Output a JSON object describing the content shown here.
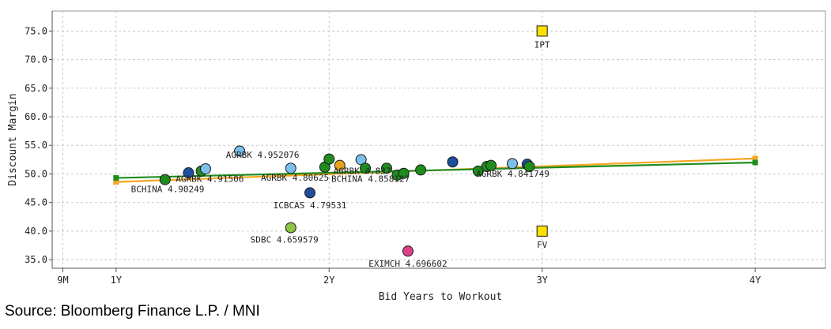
{
  "chart_data": {
    "type": "scatter",
    "xlabel": "Bid Years to Workout",
    "ylabel": "Discount Margin",
    "x_ticks": [
      {
        "label": "9M",
        "value": 0.75
      },
      {
        "label": "1Y",
        "value": 1.0
      },
      {
        "label": "2Y",
        "value": 2.0
      },
      {
        "label": "3Y",
        "value": 3.0
      },
      {
        "label": "4Y",
        "value": 4.0
      }
    ],
    "y_ticks": [
      "35.0",
      "40.0",
      "45.0",
      "50.0",
      "55.0",
      "60.0",
      "65.0",
      "70.0",
      "75.0"
    ],
    "xlim": [
      0.7,
      4.33
    ],
    "ylim": [
      33.5,
      78.5
    ],
    "grid": true,
    "trend_lines": [
      {
        "name": "orange-trend",
        "color": "#F5A623",
        "x": [
          1.0,
          4.0
        ],
        "y": [
          48.6,
          52.7
        ]
      },
      {
        "name": "green-trend",
        "color": "#1E8C1E",
        "x": [
          1.0,
          4.0
        ],
        "y": [
          49.3,
          52.0
        ]
      }
    ],
    "points": [
      {
        "x": 1.23,
        "y": 49.0,
        "color": "#1E8C1E"
      },
      {
        "x": 1.34,
        "y": 50.2,
        "color": "#1F4E9C"
      },
      {
        "x": 1.4,
        "y": 50.5,
        "color": "#1E8C1E"
      },
      {
        "x": 1.42,
        "y": 50.9,
        "color": "#7BC0EB"
      },
      {
        "x": 1.58,
        "y": 54.0,
        "color": "#7BC0EB"
      },
      {
        "x": 1.82,
        "y": 51.0,
        "color": "#7BC0EB"
      },
      {
        "x": 1.98,
        "y": 51.2,
        "color": "#1E8C1E"
      },
      {
        "x": 2.0,
        "y": 52.6,
        "color": "#1E8C1E"
      },
      {
        "x": 2.05,
        "y": 51.5,
        "color": "#E8A317"
      },
      {
        "x": 2.15,
        "y": 52.5,
        "color": "#7BC0EB"
      },
      {
        "x": 2.17,
        "y": 51.0,
        "color": "#1E8C1E"
      },
      {
        "x": 2.27,
        "y": 51.0,
        "color": "#1E8C1E"
      },
      {
        "x": 2.32,
        "y": 49.8,
        "color": "#1E8C1E"
      },
      {
        "x": 2.35,
        "y": 50.1,
        "color": "#1E8C1E"
      },
      {
        "x": 2.43,
        "y": 50.7,
        "color": "#1E8C1E"
      },
      {
        "x": 2.58,
        "y": 52.1,
        "color": "#1F4E9C"
      },
      {
        "x": 2.7,
        "y": 50.5,
        "color": "#1E8C1E"
      },
      {
        "x": 2.74,
        "y": 51.3,
        "color": "#1E8C1E"
      },
      {
        "x": 2.76,
        "y": 51.5,
        "color": "#1E8C1E"
      },
      {
        "x": 2.86,
        "y": 51.8,
        "color": "#7BC0EB"
      },
      {
        "x": 2.93,
        "y": 51.7,
        "color": "#1F4E9C"
      },
      {
        "x": 2.94,
        "y": 51.3,
        "color": "#1E8C1E"
      },
      {
        "x": 1.91,
        "y": 46.7,
        "color": "#1F4E9C"
      },
      {
        "x": 1.82,
        "y": 40.6,
        "color": "#8DC63F"
      },
      {
        "x": 2.37,
        "y": 36.5,
        "color": "#E0408A"
      }
    ],
    "square_points": [
      {
        "x": 3.0,
        "y": 75.0,
        "color": "#FFE000",
        "label": "IPT"
      },
      {
        "x": 3.0,
        "y": 40.0,
        "color": "#FFE000",
        "label": "FV"
      }
    ],
    "annotations": [
      {
        "text": "AGRBK 4.952076",
        "x": 1.86,
        "y": 52.8,
        "anchor": "end"
      },
      {
        "text": "AGRBK 4.91506",
        "x": 1.28,
        "y": 48.6,
        "anchor": "start"
      },
      {
        "text": "BCHINA 4.90249",
        "x": 1.07,
        "y": 46.8,
        "anchor": "start"
      },
      {
        "text": "AGRBK 4.80625",
        "x": 1.68,
        "y": 48.8,
        "anchor": "start"
      },
      {
        "text": "AGRBK 4.837",
        "x": 2.02,
        "y": 50.0,
        "anchor": "start"
      },
      {
        "text": "BCHINA 4.858127",
        "x": 2.01,
        "y": 48.6,
        "anchor": "start"
      },
      {
        "text": "AGRBK 4.841749",
        "x": 2.69,
        "y": 49.5,
        "anchor": "start"
      },
      {
        "text": "ICBCAS 4.79531",
        "x": 1.91,
        "y": 44.0,
        "anchor": "middle"
      },
      {
        "text": "SDBC 4.659579",
        "x": 1.79,
        "y": 38.0,
        "anchor": "middle"
      },
      {
        "text": "EXIMCH 4.696602",
        "x": 2.37,
        "y": 33.8,
        "anchor": "middle"
      }
    ]
  },
  "source": "Source: Bloomberg Finance L.P. / MNI"
}
